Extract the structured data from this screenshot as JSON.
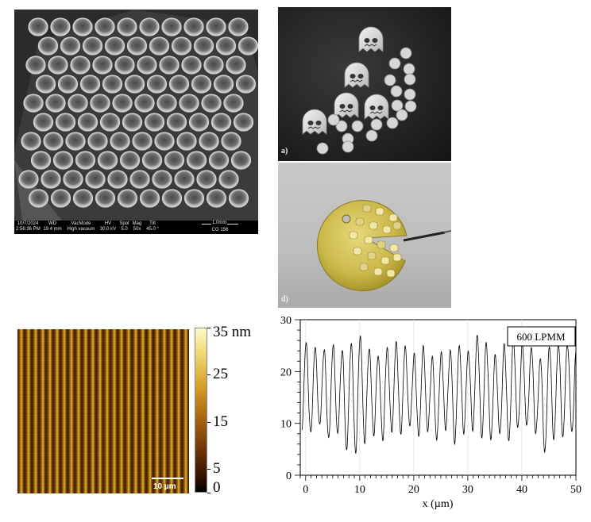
{
  "sem_panel": {
    "databar": [
      {
        "label": "10/7/2024",
        "value": "2:56:36 PM"
      },
      {
        "label": "WD",
        "value": "19.4 mm"
      },
      {
        "label": "VacMode",
        "value": "High vacuum"
      },
      {
        "label": "HV",
        "value": "30.0 kV"
      },
      {
        "label": "Spot",
        "value": "5.0"
      },
      {
        "label": "Mag",
        "value": "50x"
      },
      {
        "label": "Tilt",
        "value": "45.0 °"
      }
    ],
    "scale_label": "1.0mm",
    "detector": "CG 156"
  },
  "photo_a": {
    "letter": "a)"
  },
  "photo_d": {
    "letter": "d)"
  },
  "afm": {
    "scale_label": "10 µm",
    "colorbar": {
      "labels": [
        "35 nm",
        "25",
        "15",
        "5",
        "0"
      ],
      "values": [
        35,
        25,
        15,
        5,
        0
      ]
    }
  },
  "chart_data": {
    "type": "line",
    "legend": "600 LPMM",
    "xlabel": "x (µm)",
    "ylabel": "",
    "xlim": [
      -1,
      50
    ],
    "ylim": [
      0,
      30
    ],
    "xticks": [
      0,
      10,
      20,
      30,
      40,
      50
    ],
    "yticks": [
      0,
      10,
      20,
      30
    ],
    "period_um": 1.667,
    "grid": "vertical",
    "series": [
      {
        "peaks": [
          25.5,
          24.5,
          24.0,
          25.0,
          24.0,
          25.5,
          27.0,
          24.5,
          23.0,
          24.5,
          25.5,
          24.5,
          23.0,
          24.5,
          22.5,
          23.5,
          24.0,
          25.0,
          24.0,
          27.0,
          25.5,
          23.0,
          25.0,
          26.0,
          25.0,
          24.5,
          22.5,
          25.0,
          25.5,
          25.5,
          24.5,
          25.0,
          23.5,
          25.0,
          26.0,
          24.5,
          23.5,
          22.0,
          22.5,
          23.5,
          24.0,
          25.0,
          24.0,
          22.0
        ],
        "valleys": [
          8.5,
          8.0,
          9.5,
          7.0,
          8.0,
          5.0,
          4.5,
          6.5,
          8.0,
          7.0,
          8.5,
          8.0,
          9.5,
          7.5,
          8.5,
          7.0,
          9.0,
          6.5,
          8.5,
          9.0,
          7.5,
          7.0,
          8.0,
          6.5,
          9.0,
          9.5,
          8.0,
          4.5,
          7.0,
          7.5,
          8.5,
          8.5,
          8.0,
          8.0,
          7.0,
          9.5,
          8.0,
          7.5,
          9.0,
          8.5,
          8.0,
          7.5,
          8.5,
          9.0
        ]
      }
    ]
  }
}
